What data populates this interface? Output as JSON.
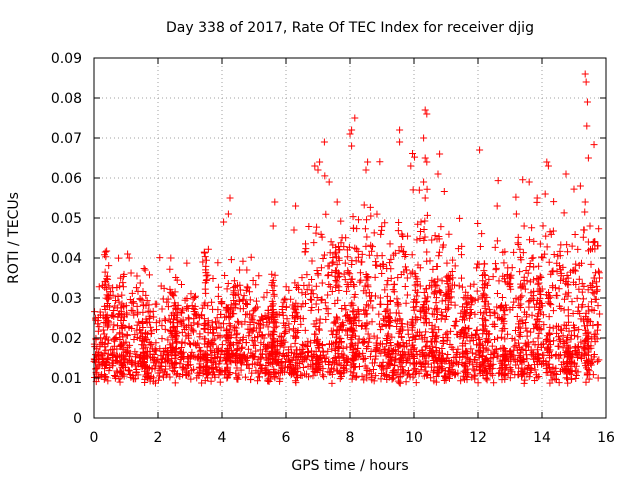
{
  "chart_data": {
    "type": "scatter",
    "title": "Day 338 of 2017, Rate Of TEC Index for receiver djig",
    "xlabel": "GPS time / hours",
    "ylabel": "ROTI / TECUs",
    "xlim": [
      0,
      16
    ],
    "ylim": [
      0,
      0.09
    ],
    "xticks": [
      "0",
      "2",
      "4",
      "6",
      "8",
      "10",
      "12",
      "14",
      "16"
    ],
    "yticks": [
      "0",
      "0.01",
      "0.02",
      "0.03",
      "0.04",
      "0.05",
      "0.06",
      "0.07",
      "0.08",
      "0.09"
    ],
    "grid": true,
    "marker": "+",
    "color": "#ff0000",
    "series": [
      {
        "name": "ROTI",
        "outliers": [
          [
            0.8,
            0.033
          ],
          [
            1.05,
            0.041
          ],
          [
            1.1,
            0.04
          ],
          [
            1.6,
            0.037
          ],
          [
            2.1,
            0.033
          ],
          [
            2.4,
            0.04
          ],
          [
            3.4,
            0.039
          ],
          [
            4.05,
            0.049
          ],
          [
            4.25,
            0.055
          ],
          [
            4.2,
            0.051
          ],
          [
            5.65,
            0.054
          ],
          [
            5.6,
            0.048
          ],
          [
            6.3,
            0.053
          ],
          [
            6.25,
            0.047
          ],
          [
            6.9,
            0.063
          ],
          [
            7.0,
            0.062
          ],
          [
            7.05,
            0.064
          ],
          [
            7.2,
            0.069
          ],
          [
            7.35,
            0.059
          ],
          [
            7.6,
            0.054
          ],
          [
            8.0,
            0.071
          ],
          [
            8.05,
            0.072
          ],
          [
            8.15,
            0.075
          ],
          [
            8.05,
            0.068
          ],
          [
            8.5,
            0.062
          ],
          [
            8.55,
            0.064
          ],
          [
            9.55,
            0.072
          ],
          [
            9.55,
            0.069
          ],
          [
            9.9,
            0.063
          ],
          [
            10.35,
            0.077
          ],
          [
            10.4,
            0.076
          ],
          [
            10.3,
            0.07
          ],
          [
            10.35,
            0.065
          ],
          [
            10.4,
            0.064
          ],
          [
            10.3,
            0.059
          ],
          [
            10.35,
            0.055
          ],
          [
            10.8,
            0.066
          ],
          [
            10.75,
            0.061
          ],
          [
            12.05,
            0.067
          ],
          [
            12.6,
            0.053
          ],
          [
            13.2,
            0.051
          ],
          [
            13.6,
            0.059
          ],
          [
            13.85,
            0.055
          ],
          [
            14.15,
            0.064
          ],
          [
            14.2,
            0.063
          ],
          [
            14.1,
            0.056
          ],
          [
            14.75,
            0.061
          ],
          [
            15.2,
            0.058
          ],
          [
            15.35,
            0.086
          ],
          [
            15.38,
            0.084
          ],
          [
            15.42,
            0.079
          ],
          [
            15.4,
            0.073
          ],
          [
            15.45,
            0.065
          ],
          [
            15.35,
            0.054
          ],
          [
            15.5,
            0.048
          ],
          [
            15.45,
            0.044
          ]
        ]
      }
    ]
  }
}
